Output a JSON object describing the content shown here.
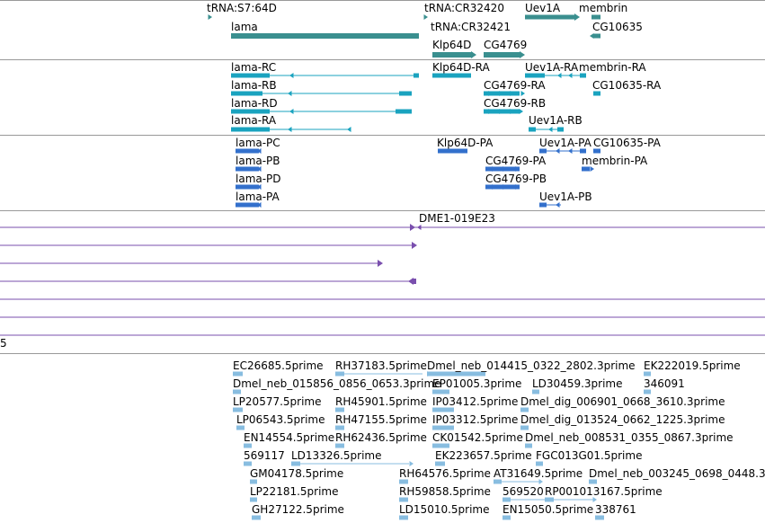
{
  "colors": {
    "gene": "#3a8f8f",
    "transcript": "#1aa3bf",
    "protein": "#3370cc",
    "clone": "#7a4fae",
    "est": "#88bde0",
    "divider": "#999999"
  },
  "gene_track": [
    {
      "label": "tRNA:S7:64D"
    },
    {
      "label": "tRNA:CR32420"
    },
    {
      "label": "Uev1A"
    },
    {
      "label": "membrin"
    },
    {
      "label": "lama"
    },
    {
      "label": "tRNA:CR32421"
    },
    {
      "label": "CG10635"
    },
    {
      "label": "Klp64D"
    },
    {
      "label": "CG4769"
    }
  ],
  "transcript_track": [
    {
      "label": "lama-RC"
    },
    {
      "label": "Klp64D-RA"
    },
    {
      "label": "Uev1A-RA"
    },
    {
      "label": "membrin-RA"
    },
    {
      "label": "lama-RB"
    },
    {
      "label": "CG4769-RA"
    },
    {
      "label": "CG10635-RA"
    },
    {
      "label": "lama-RD"
    },
    {
      "label": "CG4769-RB"
    },
    {
      "label": "lama-RA"
    },
    {
      "label": "Uev1A-RB"
    }
  ],
  "protein_track": [
    {
      "label": "lama-PC"
    },
    {
      "label": "Klp64D-PA"
    },
    {
      "label": "Uev1A-PA"
    },
    {
      "label": "CG10635-PA"
    },
    {
      "label": "lama-PB"
    },
    {
      "label": "CG4769-PA"
    },
    {
      "label": "membrin-PA"
    },
    {
      "label": "lama-PD"
    },
    {
      "label": "CG4769-PB"
    },
    {
      "label": "lama-PA"
    },
    {
      "label": "Uev1A-PB"
    }
  ],
  "clone_track": [
    {
      "label": "DME1-019E23"
    }
  ],
  "partial_track": {
    "label": "5"
  },
  "est_track": [
    {
      "label": "EC26685.5prime"
    },
    {
      "label": "RH37183.5prime"
    },
    {
      "label": "Dmel_neb_014415_0322_2802.3prime"
    },
    {
      "label": "EK222019.5prime"
    },
    {
      "label": "Dmel_neb_015856_0856_0653.3prime"
    },
    {
      "label": "EP01005.3prime"
    },
    {
      "label": "LD30459.3prime"
    },
    {
      "label": "346091"
    },
    {
      "label": "LP20577.5prime"
    },
    {
      "label": "RH45901.5prime"
    },
    {
      "label": "IP03412.5prime"
    },
    {
      "label": "Dmel_dig_006901_0668_3610.3prime"
    },
    {
      "label": "LP06543.5prime"
    },
    {
      "label": "RH47155.5prime"
    },
    {
      "label": "IP03312.5prime"
    },
    {
      "label": "Dmel_dig_013524_0662_1225.3prime"
    },
    {
      "label": "EN14554.5prime"
    },
    {
      "label": "RH62436.5prime"
    },
    {
      "label": "CK01542.5prime"
    },
    {
      "label": "Dmel_neb_008531_0355_0867.3prime"
    },
    {
      "label": "569117"
    },
    {
      "label": "LD13326.5prime"
    },
    {
      "label": "EK223657.5prime"
    },
    {
      "label": "FGC013G01.5prime"
    },
    {
      "label": "GM04178.5prime"
    },
    {
      "label": "RH64576.5prime"
    },
    {
      "label": "AT31649.5prime"
    },
    {
      "label": "Dmel_neb_003245_0698_0448.3"
    },
    {
      "label": "LP22181.5prime"
    },
    {
      "label": "RH59858.5prime"
    },
    {
      "label": "569520"
    },
    {
      "label": "RP001013167.5prime"
    },
    {
      "label": "GH27122.5prime"
    },
    {
      "label": "LD15010.5prime"
    },
    {
      "label": "EN15050.5prime"
    },
    {
      "label": "338761"
    }
  ]
}
